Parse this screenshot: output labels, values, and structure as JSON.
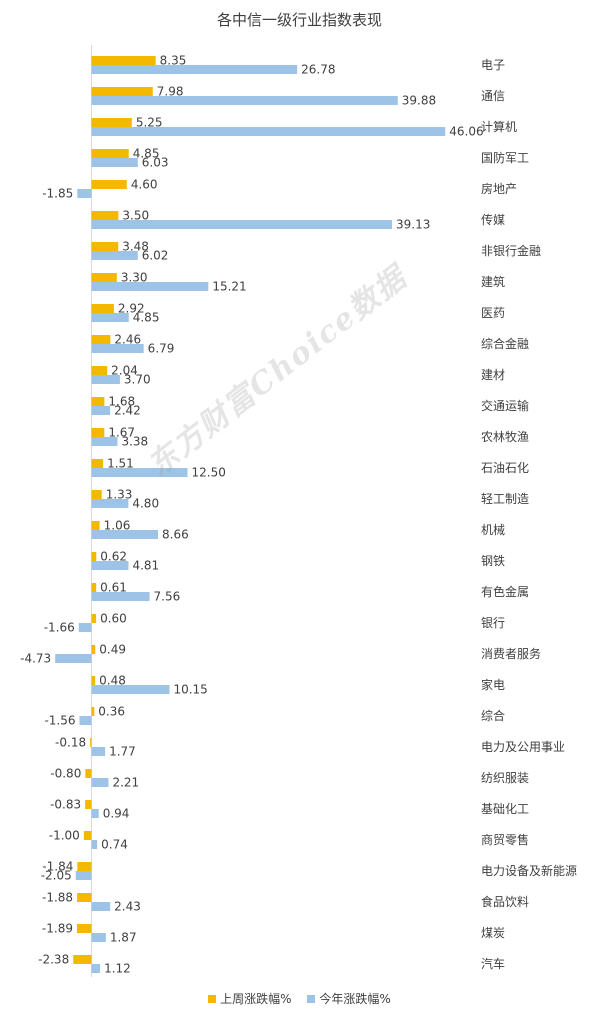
{
  "chart_data": {
    "type": "bar",
    "orientation": "horizontal",
    "title": "各中信一级行业指数表现",
    "categories": [
      "电子",
      "通信",
      "计算机",
      "国防军工",
      "房地产",
      "传媒",
      "非银行金融",
      "建筑",
      "医药",
      "综合金融",
      "建材",
      "交通运输",
      "农林牧渔",
      "石油石化",
      "轻工制造",
      "机械",
      "钢铁",
      "有色金属",
      "银行",
      "消费者服务",
      "家电",
      "综合",
      "电力及公用事业",
      "纺织服装",
      "基础化工",
      "商贸零售",
      "电力设备及新能源",
      "食品饮料",
      "煤炭",
      "汽车"
    ],
    "series": [
      {
        "name": "上周涨跌幅%",
        "color": "#f5b800",
        "values": [
          8.35,
          7.98,
          5.25,
          4.85,
          4.6,
          3.5,
          3.48,
          3.3,
          2.92,
          2.46,
          2.04,
          1.68,
          1.67,
          1.51,
          1.33,
          1.06,
          0.62,
          0.61,
          0.6,
          0.49,
          0.48,
          0.36,
          -0.18,
          -0.8,
          -0.83,
          -1.0,
          -1.84,
          -1.88,
          -1.89,
          -2.38
        ]
      },
      {
        "name": "今年涨跌幅%",
        "color": "#9dc3e6",
        "values": [
          26.78,
          39.88,
          46.06,
          6.03,
          -1.85,
          39.13,
          6.02,
          15.21,
          4.85,
          6.79,
          3.7,
          2.42,
          3.38,
          12.5,
          4.8,
          8.66,
          4.81,
          7.56,
          -1.66,
          -4.73,
          10.15,
          -1.56,
          1.77,
          2.21,
          0.94,
          0.74,
          -2.05,
          2.43,
          1.87,
          1.12
        ]
      }
    ],
    "value_labels": [
      [
        "8.35",
        "7.98",
        "5.25",
        "4.85",
        "4.60",
        "3.50",
        "3.48",
        "3.30",
        "2.92",
        "2.46",
        "2.04",
        "1.68",
        "1.67",
        "1.51",
        "1.33",
        "1.06",
        "0.62",
        "0.61",
        "0.60",
        "0.49",
        "0.48",
        "0.36",
        "-0.18",
        "-0.80",
        "-0.83",
        "-1.00",
        "-1.84",
        "-1.88",
        "-1.89",
        "-2.38"
      ],
      [
        "26.78",
        "39.88",
        "46.06",
        "6.03",
        "-1.85",
        "39.13",
        "6.02",
        "15.21",
        "4.85",
        "6.79",
        "3.70",
        "2.42",
        "3.38",
        "12.50",
        "4.80",
        "8.66",
        "4.81",
        "7.56",
        "-1.66",
        "-4.73",
        "10.15",
        "-1.56",
        "1.77",
        "2.21",
        "0.94",
        "0.74",
        "-2.05",
        "2.43",
        "1.87",
        "1.12"
      ]
    ],
    "legend": {
      "position": "bottom"
    },
    "grid": false
  },
  "watermark": "东方财富Choice数据"
}
